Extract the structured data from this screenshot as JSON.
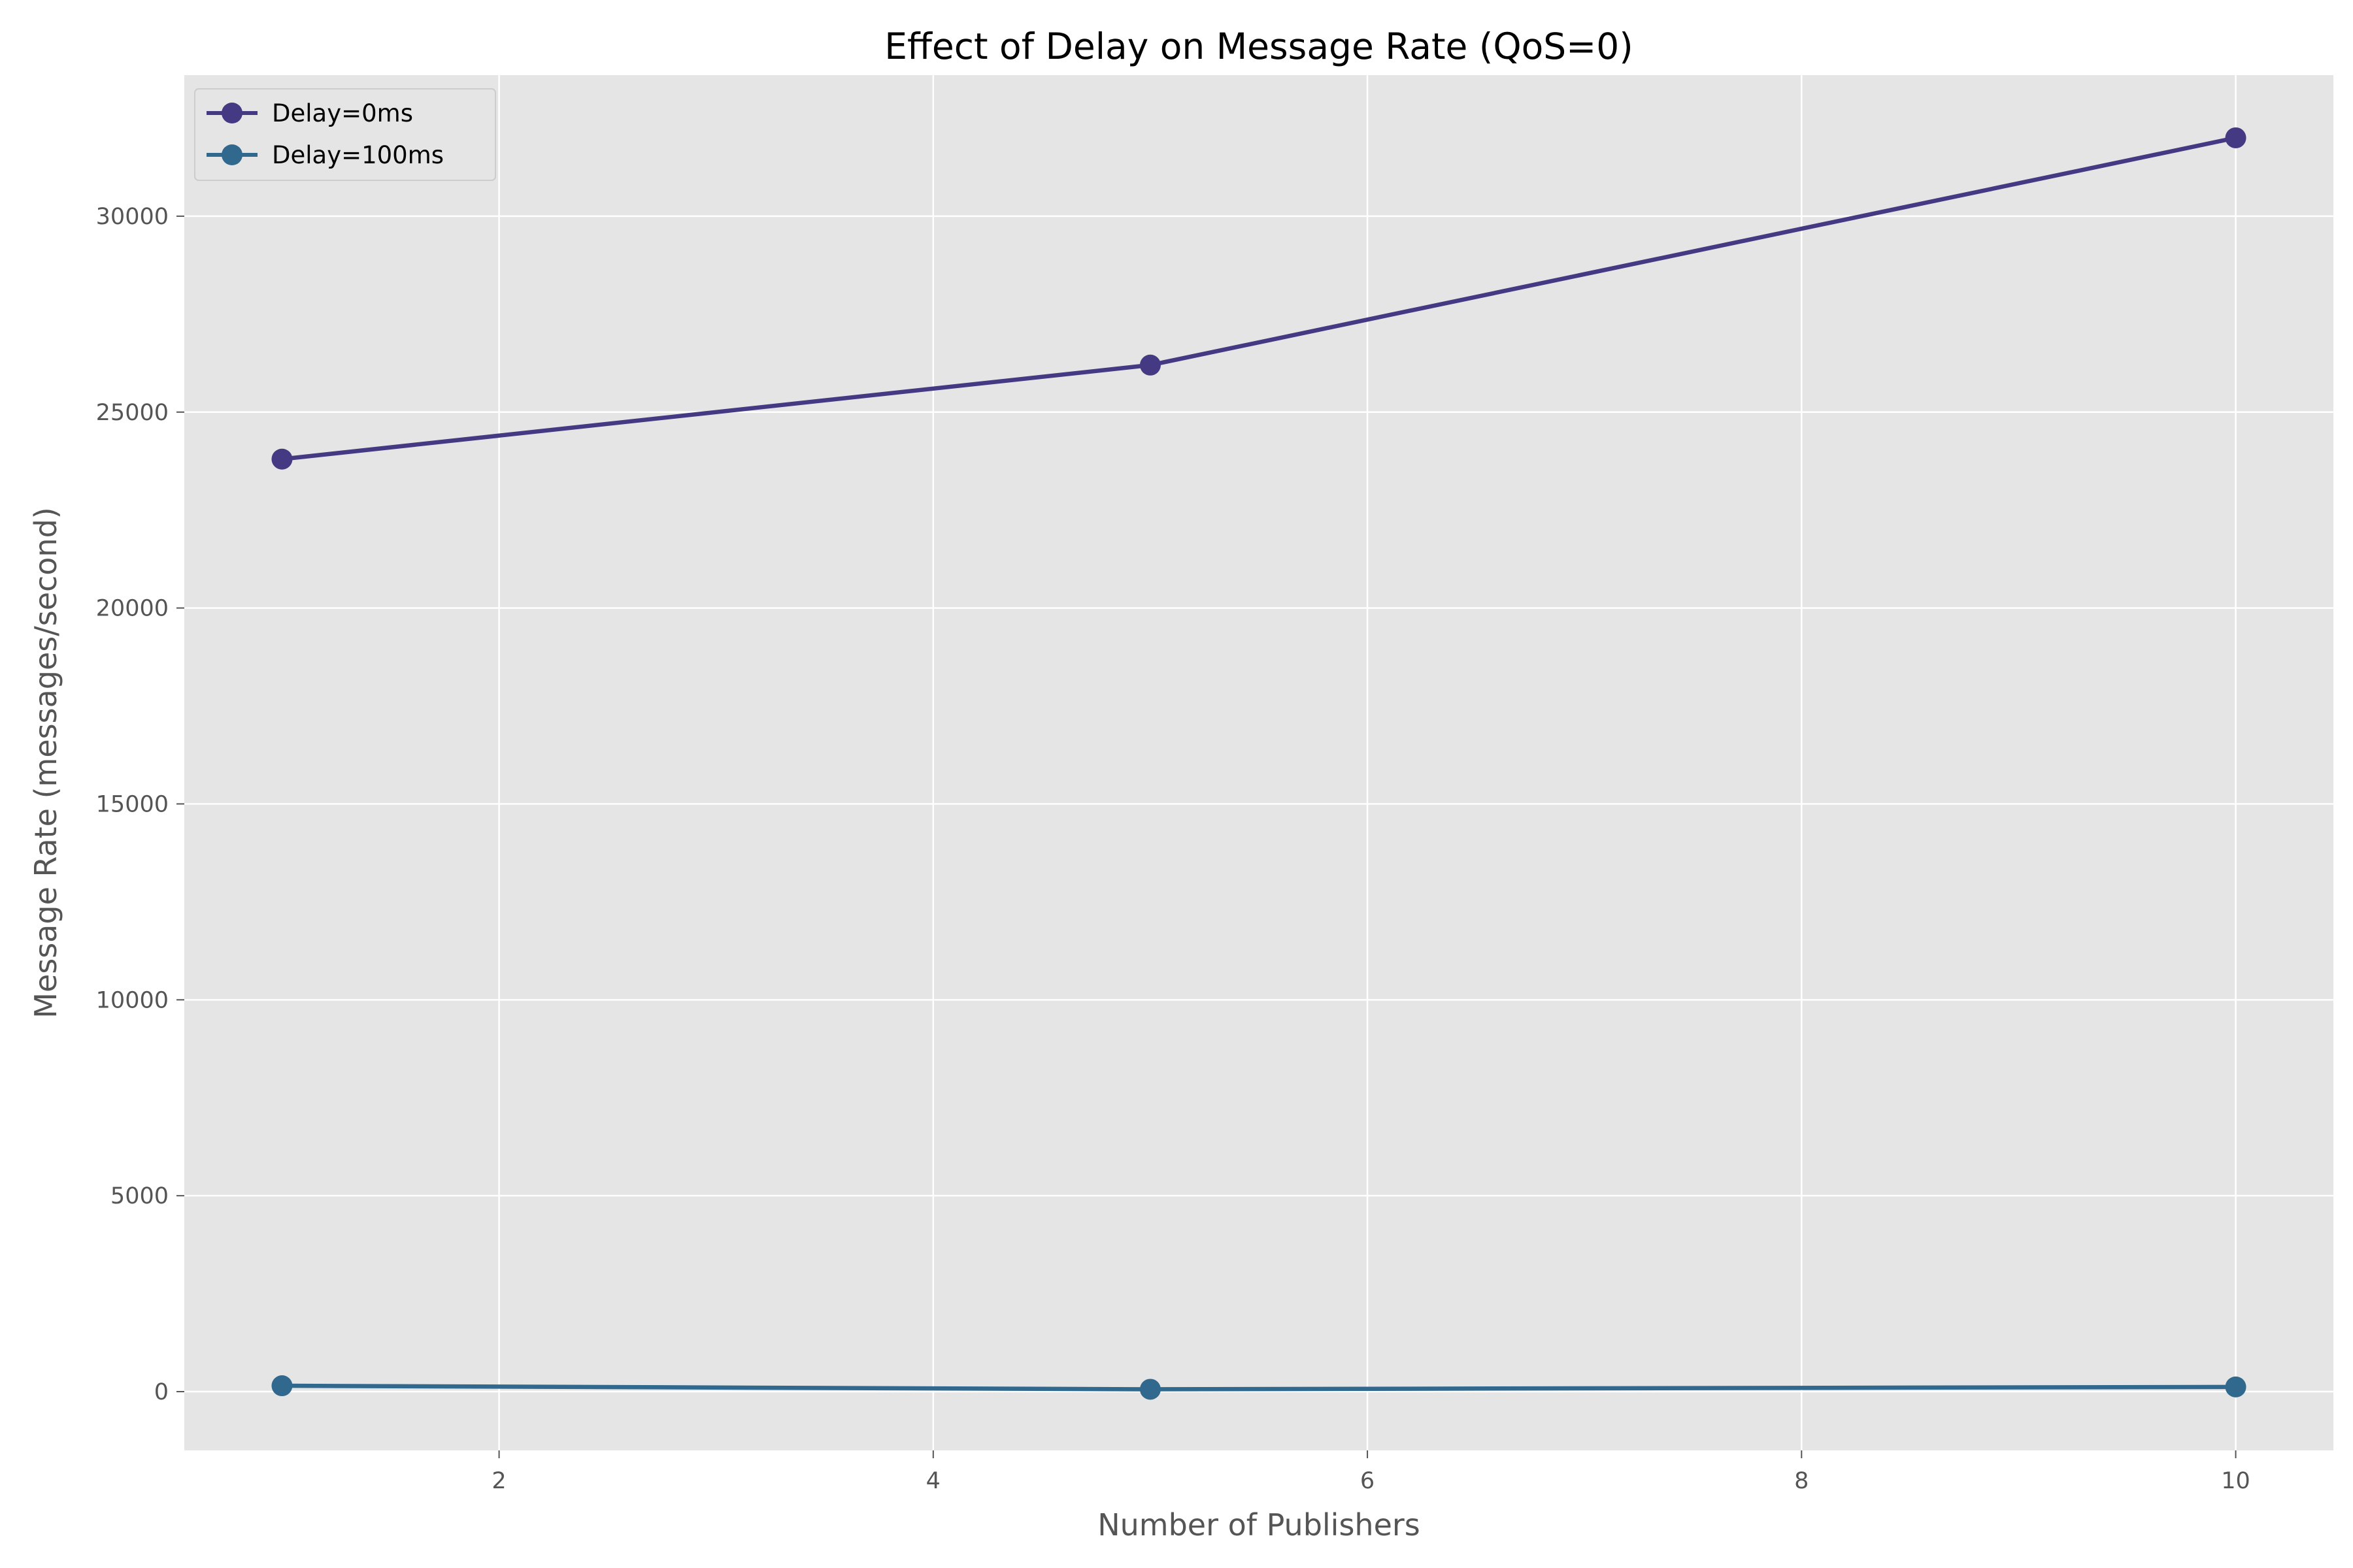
{
  "chart_data": {
    "type": "line",
    "title": "Effect of Delay on Message Rate (QoS=0)",
    "xlabel": "Number of Publishers",
    "ylabel": "Message Rate (messages/second)",
    "xlim": [
      0.55,
      10.45
    ],
    "ylim": [
      -1500,
      33600
    ],
    "xticks": [
      2,
      4,
      6,
      8,
      10
    ],
    "yticks": [
      0,
      5000,
      10000,
      15000,
      20000,
      25000,
      30000
    ],
    "grid": true,
    "legend_position": "top-left",
    "x": [
      1,
      5,
      10
    ],
    "series": [
      {
        "name": "Delay=0ms",
        "color": "#443983",
        "values": [
          23800,
          26200,
          32000
        ]
      },
      {
        "name": "Delay=100ms",
        "color": "#31688e",
        "values": [
          150,
          60,
          120
        ]
      }
    ]
  }
}
